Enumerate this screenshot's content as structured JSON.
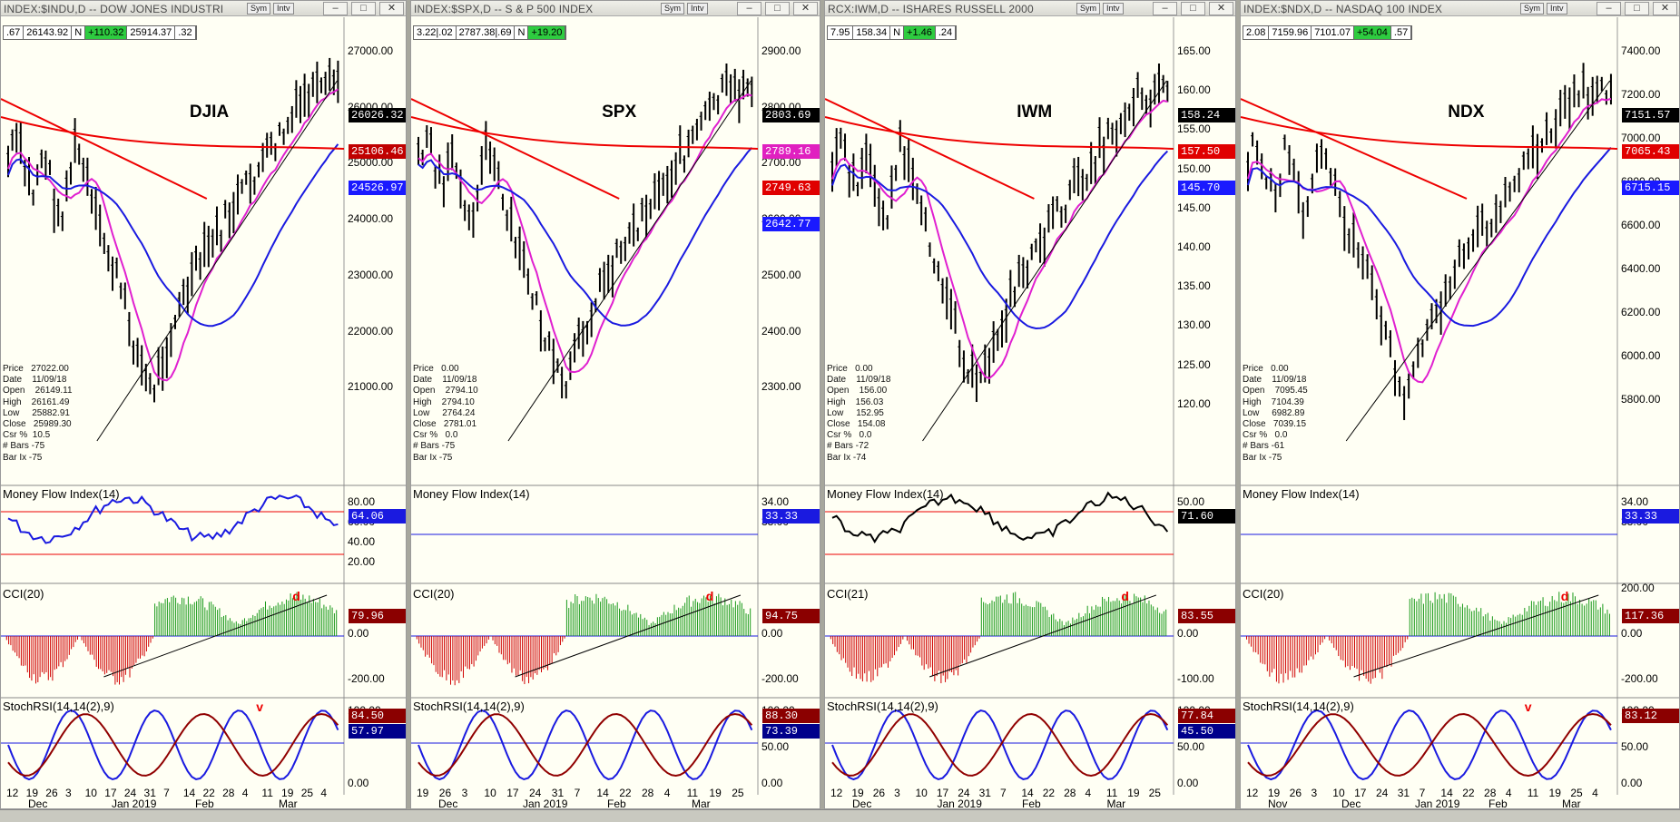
{
  "panels": [
    {
      "title": "INDEX:$INDU,D -- DOW JONES INDUSTRI",
      "sym": "DJIA",
      "info": [
        ".67",
        "26143.92",
        "N",
        "+110.32",
        "25914.37",
        ".32"
      ],
      "prices": [
        "27000.00",
        "26000.00",
        "25000.00",
        "24000.00",
        "23000.00",
        "22000.00",
        "21000.00"
      ],
      "plabels": [
        {
          "v": "26026.32",
          "c": "#000000"
        },
        {
          "v": "25106.46",
          "c": "#c00000"
        },
        {
          "v": "24526.97",
          "c": "#1a1aff"
        }
      ],
      "data": "Price   27022.00\nDate    11/09/18\nOpen    26149.11\nHigh    26161.49\nLow     25882.91\nClose   25989.30\nCsr %  10.5\n# Bars -75\nBar Ix -75",
      "mfi_title": "Money Flow Index(14)",
      "mfi_ticks": [
        "80.00",
        "60.00",
        "40.00",
        "20.00"
      ],
      "mfi_val": "64.06",
      "cci_title": "CCI(20)",
      "cci_ticks": [
        "0.00",
        "-200.00"
      ],
      "cci_val": "79.96",
      "rsi_title": "StochRSI(14,14(2),9)",
      "rsi_ticks": [
        "100.00",
        "0.00"
      ],
      "rsi_vals": [
        "84.50",
        "57.97"
      ],
      "dates": [
        "12",
        "19",
        "26",
        "3",
        "10",
        "17",
        "24",
        "31",
        "7",
        "14",
        "22",
        "28",
        "4",
        "11",
        "19",
        "25",
        "4"
      ],
      "months": [
        "Dec",
        "Jan 2019",
        "Feb",
        "Mar"
      ],
      "marks": [
        "d",
        "v"
      ]
    },
    {
      "title": "INDEX:$SPX,D -- S & P 500 INDEX",
      "sym": "SPX",
      "info": [
        "3.22|.02",
        "2787.38|.69",
        "N",
        "+19.20"
      ],
      "prices": [
        "2900.00",
        "2800.00",
        "2700.00",
        "2600.00",
        "2500.00",
        "2400.00",
        "2300.00"
      ],
      "plabels": [
        {
          "v": "2803.69",
          "c": "#000000"
        },
        {
          "v": "2789.16",
          "c": "#e020c0"
        },
        {
          "v": "2749.63",
          "c": "#e00000"
        },
        {
          "v": "2642.77",
          "c": "#1a1aff"
        }
      ],
      "data": "Price   0.00\nDate    11/09/18\nOpen    2794.10\nHigh    2794.10\nLow     2764.24\nClose   2781.01\nCsr %   0.0\n# Bars -75\nBar Ix -75",
      "mfi_title": "Money Flow Index(14)",
      "mfi_ticks": [
        "34.00",
        "33.00"
      ],
      "mfi_val": "33.33",
      "cci_title": "CCI(20)",
      "cci_ticks": [
        "0.00",
        "-200.00"
      ],
      "cci_val": "94.75",
      "rsi_title": "StochRSI(14,14(2),9)",
      "rsi_ticks": [
        "100.00",
        "50.00",
        "0.00"
      ],
      "rsi_vals": [
        "88.30",
        "73.39"
      ],
      "dates": [
        "19",
        "26",
        "3",
        "10",
        "17",
        "24",
        "31",
        "7",
        "14",
        "22",
        "28",
        "4",
        "11",
        "19",
        "25"
      ],
      "months": [
        "Dec",
        "Jan 2019",
        "Feb",
        "Mar"
      ],
      "marks": [
        "d"
      ]
    },
    {
      "title": "RCX:IWM,D -- ISHARES RUSSELL 2000",
      "sym": "IWM",
      "info": [
        "7.95",
        "158.34",
        "N",
        "+1.46",
        ".24"
      ],
      "prices": [
        "165.00",
        "160.00",
        "155.00",
        "150.00",
        "145.00",
        "140.00",
        "135.00",
        "130.00",
        "125.00",
        "120.00"
      ],
      "plabels": [
        {
          "v": "158.24",
          "c": "#000000"
        },
        {
          "v": "157.50",
          "c": "#e00000"
        },
        {
          "v": "145.70",
          "c": "#1a1aff"
        }
      ],
      "data": "Price   0.00\nDate    11/09/18\nOpen    156.00\nHigh    156.03\nLow     152.95\nClose   154.08\nCsr %   0.0\n# Bars -72\nBar Ix -74",
      "mfi_title": "Money Flow Index(14)",
      "mfi_ticks": [
        "50.00"
      ],
      "mfi_val": "71.60",
      "cci_title": "CCI(21)",
      "cci_ticks": [
        "0.00",
        "-100.00"
      ],
      "cci_val": "83.55",
      "rsi_title": "StochRSI(14,14(2),9)",
      "rsi_ticks": [
        "100.00",
        "50.00",
        "0.00"
      ],
      "rsi_vals": [
        "77.84",
        "45.50"
      ],
      "dates": [
        "12",
        "19",
        "26",
        "3",
        "10",
        "17",
        "24",
        "31",
        "7",
        "14",
        "22",
        "28",
        "4",
        "11",
        "19",
        "25"
      ],
      "months": [
        "Dec",
        "Jan 2019",
        "Feb",
        "Mar"
      ],
      "marks": [
        "d"
      ]
    },
    {
      "title": "INDEX:$NDX,D -- NASDAQ 100 INDEX",
      "sym": "NDX",
      "info": [
        "2.08",
        "7159.96",
        "7101.07",
        "+54.04",
        ".57"
      ],
      "prices": [
        "7400.00",
        "7200.00",
        "7000.00",
        "6800.00",
        "6600.00",
        "6400.00",
        "6200.00",
        "6000.00",
        "5800.00"
      ],
      "plabels": [
        {
          "v": "7151.57",
          "c": "#000000"
        },
        {
          "v": "7065.43",
          "c": "#e00000"
        },
        {
          "v": "6715.15",
          "c": "#1a1aff"
        }
      ],
      "data": "Price   0.00\nDate    11/09/18\nOpen    7095.45\nHigh    7104.39\nLow     6982.89\nClose   7039.15\nCsr %   0.0\n# Bars -61\nBar Ix -75",
      "mfi_title": "Money Flow Index(14)",
      "mfi_ticks": [
        "34.00",
        "33.00"
      ],
      "mfi_val": "33.33",
      "cci_title": "CCI(20)",
      "cci_ticks": [
        "200.00",
        "0.00",
        "-200.00"
      ],
      "cci_val": "117.36",
      "rsi_title": "StochRSI(14,14(2),9)",
      "rsi_ticks": [
        "100.00",
        "50.00",
        "0.00"
      ],
      "rsi_vals": [
        "83.12"
      ],
      "dates": [
        "12",
        "19",
        "26",
        "3",
        "10",
        "17",
        "24",
        "31",
        "7",
        "14",
        "22",
        "28",
        "4",
        "11",
        "19",
        "25",
        "4"
      ],
      "months": [
        "Nov",
        "Dec",
        "Jan 2019",
        "Feb",
        "Mar"
      ],
      "marks": [
        "d",
        "v"
      ]
    }
  ],
  "buttons": {
    "sym": "Sym",
    "intv": "Intv"
  }
}
